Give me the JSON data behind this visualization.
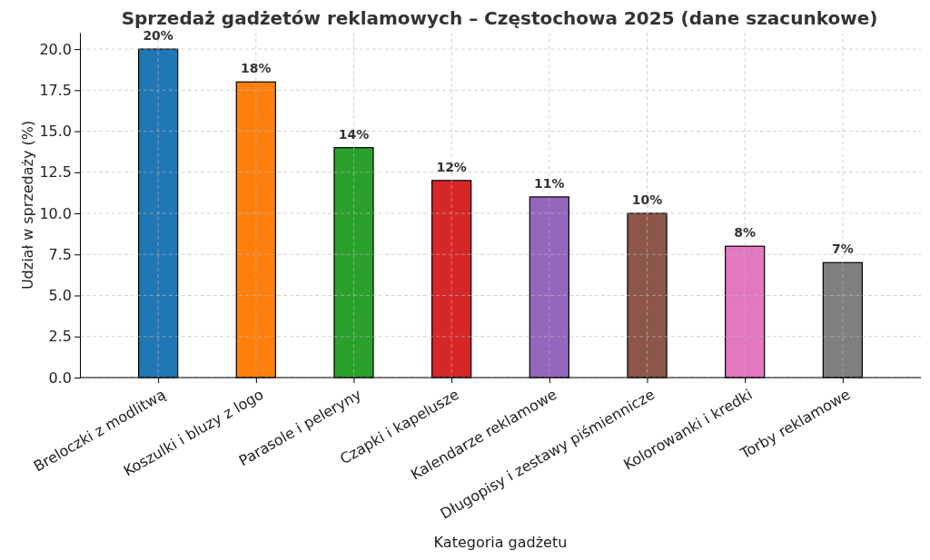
{
  "chart_data": {
    "type": "bar",
    "title": "Sprzedaż gadżetów reklamowych – Częstochowa 2025 (dane szacunkowe)",
    "xlabel": "Kategoria gadżetu",
    "ylabel": "Udział w sprzedaży (%)",
    "categories": [
      "Breloczki z modlitwą",
      "Koszulki i bluzy z logo",
      "Parasole i peleryny",
      "Czapki i kapelusze",
      "Kalendarze reklamowe",
      "Długopisy i zestawy piśmiennicze",
      "Kolorowanki i kredki",
      "Torby reklamowe"
    ],
    "values": [
      20,
      18,
      14,
      12,
      11,
      10,
      8,
      7
    ],
    "colors": [
      "#1f77b4",
      "#ff7f0e",
      "#2ca02c",
      "#d62728",
      "#9467bd",
      "#8c564b",
      "#e377c2",
      "#7f7f7f"
    ],
    "value_labels": [
      "20%",
      "18%",
      "14%",
      "12%",
      "11%",
      "10%",
      "8%",
      "7%"
    ],
    "ylim": [
      0,
      21
    ],
    "yticks": [
      {
        "value": 0,
        "label": "0.0"
      },
      {
        "value": 2.5,
        "label": "2.5"
      },
      {
        "value": 5,
        "label": "5.0"
      },
      {
        "value": 7.5,
        "label": "7.5"
      },
      {
        "value": 10,
        "label": "10.0"
      },
      {
        "value": 12.5,
        "label": "12.5"
      },
      {
        "value": 15,
        "label": "15.0"
      },
      {
        "value": 17.5,
        "label": "17.5"
      },
      {
        "value": 20,
        "label": "20.0"
      }
    ],
    "grid": true
  }
}
